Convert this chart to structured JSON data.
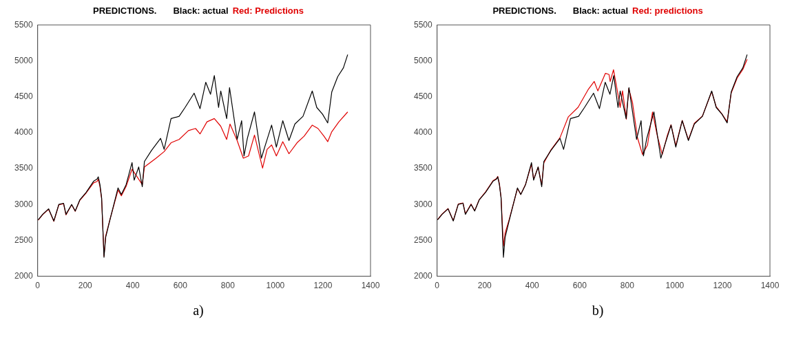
{
  "chart_data": [
    {
      "type": "line",
      "title": "PREDICTIONS.",
      "legend": "top",
      "xlim": [
        0,
        1400
      ],
      "xticks": [
        0,
        200,
        400,
        600,
        800,
        1000,
        1200,
        1400
      ],
      "ylim": [
        2000,
        5500
      ],
      "yticks": [
        2000,
        2500,
        3000,
        3500,
        4000,
        4500,
        5000,
        5500
      ],
      "annotations": [
        "a)"
      ],
      "series": [
        {
          "name": "Black: actual",
          "color": "#000000",
          "x": [
            2,
            21,
            46,
            68,
            89,
            109,
            119,
            143,
            158,
            177,
            204,
            235,
            250,
            255,
            262,
            269,
            279,
            286,
            304,
            338,
            352,
            372,
            397,
            406,
            425,
            440,
            449,
            479,
            517,
            532,
            561,
            595,
            620,
            658,
            683,
            707,
            727,
            743,
            761,
            770,
            795,
            807,
            839,
            858,
            868,
            882,
            912,
            941,
            955,
            984,
            1004,
            1031,
            1057,
            1082,
            1116,
            1155,
            1174,
            1198,
            1220,
            1237,
            1262,
            1286,
            1304
          ],
          "values": [
            2786,
            2862,
            2939,
            2770,
            3000,
            3016,
            2862,
            3000,
            2908,
            3062,
            3169,
            3322,
            3353,
            3384,
            3276,
            3092,
            2264,
            2540,
            2786,
            3230,
            3138,
            3276,
            3583,
            3338,
            3522,
            3246,
            3598,
            3752,
            3920,
            3767,
            4196,
            4227,
            4350,
            4549,
            4334,
            4702,
            4534,
            4794,
            4350,
            4580,
            4196,
            4626,
            3905,
            4166,
            3675,
            3920,
            4288,
            3644,
            3798,
            4104,
            3798,
            4166,
            3890,
            4120,
            4227,
            4580,
            4350,
            4258,
            4135,
            4565,
            4779,
            4902,
            5086
          ]
        },
        {
          "name": "Red: Predictions",
          "color": "#e00000",
          "x": [
            2,
            21,
            46,
            68,
            89,
            109,
            119,
            143,
            158,
            177,
            204,
            235,
            250,
            255,
            262,
            269,
            279,
            286,
            304,
            338,
            352,
            372,
            397,
            440,
            449,
            498,
            532,
            561,
            595,
            634,
            664,
            683,
            712,
            743,
            770,
            795,
            809,
            839,
            865,
            887,
            912,
            946,
            965,
            984,
            1004,
            1031,
            1057,
            1091,
            1121,
            1155,
            1179,
            1204,
            1220,
            1237,
            1267,
            1304
          ],
          "values": [
            2780,
            2858,
            2935,
            2765,
            2995,
            3010,
            2855,
            2995,
            2905,
            3055,
            3160,
            3300,
            3320,
            3350,
            3250,
            3080,
            2280,
            2560,
            2790,
            3200,
            3120,
            3250,
            3491,
            3276,
            3522,
            3644,
            3736,
            3859,
            3905,
            4028,
            4058,
            3982,
            4150,
            4196,
            4089,
            3905,
            4120,
            3890,
            3644,
            3675,
            3966,
            3506,
            3767,
            3828,
            3675,
            3874,
            3706,
            3859,
            3951,
            4104,
            4058,
            3951,
            3874,
            4012,
            4150,
            4288
          ]
        }
      ]
    },
    {
      "type": "line",
      "title": "PREDICTIONS.",
      "legend": "top",
      "xlim": [
        0,
        1400
      ],
      "xticks": [
        0,
        200,
        400,
        600,
        800,
        1000,
        1200,
        1400
      ],
      "ylim": [
        2000,
        5500
      ],
      "yticks": [
        2000,
        2500,
        3000,
        3500,
        4000,
        4500,
        5000,
        5500
      ],
      "annotations": [
        "b)"
      ],
      "series": [
        {
          "name": "Black: actual",
          "color": "#000000",
          "x": [
            2,
            21,
            46,
            68,
            89,
            109,
            119,
            143,
            158,
            177,
            204,
            235,
            250,
            255,
            262,
            269,
            279,
            286,
            304,
            338,
            352,
            372,
            397,
            406,
            425,
            440,
            449,
            479,
            517,
            532,
            561,
            595,
            620,
            658,
            683,
            707,
            727,
            743,
            761,
            770,
            795,
            807,
            839,
            858,
            868,
            882,
            912,
            941,
            955,
            984,
            1004,
            1031,
            1057,
            1082,
            1116,
            1155,
            1174,
            1198,
            1220,
            1237,
            1262,
            1286,
            1304
          ],
          "values": [
            2786,
            2862,
            2939,
            2770,
            3000,
            3016,
            2862,
            3000,
            2908,
            3062,
            3169,
            3322,
            3353,
            3384,
            3276,
            3092,
            2264,
            2540,
            2786,
            3230,
            3138,
            3276,
            3583,
            3338,
            3522,
            3246,
            3598,
            3752,
            3920,
            3767,
            4196,
            4227,
            4350,
            4549,
            4334,
            4702,
            4534,
            4794,
            4350,
            4580,
            4196,
            4626,
            3905,
            4166,
            3675,
            3920,
            4288,
            3644,
            3798,
            4104,
            3798,
            4166,
            3890,
            4120,
            4227,
            4580,
            4350,
            4258,
            4135,
            4565,
            4779,
            4902,
            5086
          ]
        },
        {
          "name": "Red: predictions",
          "color": "#e00000",
          "x": [
            2,
            21,
            46,
            68,
            89,
            109,
            119,
            143,
            158,
            177,
            204,
            235,
            250,
            255,
            262,
            269,
            279,
            286,
            304,
            338,
            352,
            372,
            397,
            406,
            425,
            440,
            449,
            479,
            517,
            552,
            593,
            635,
            661,
            676,
            708,
            723,
            728,
            742,
            760,
            770,
            780,
            796,
            806,
            822,
            843,
            864,
            885,
            906,
            926,
            947,
            968,
            984,
            1004,
            1031,
            1057,
            1082,
            1116,
            1155,
            1174,
            1198,
            1220,
            1237,
            1262,
            1286,
            1304
          ],
          "values": [
            2790,
            2866,
            2942,
            2775,
            3005,
            3020,
            2870,
            3005,
            2912,
            3066,
            3175,
            3330,
            3360,
            3390,
            3290,
            3100,
            2420,
            2600,
            2800,
            3220,
            3140,
            3280,
            3560,
            3350,
            3520,
            3270,
            3580,
            3760,
            3930,
            4220,
            4352,
            4597,
            4712,
            4581,
            4826,
            4810,
            4712,
            4876,
            4548,
            4352,
            4581,
            4188,
            4614,
            4417,
            3926,
            3696,
            3828,
            4286,
            3959,
            3696,
            3959,
            4110,
            3820,
            4170,
            3900,
            4130,
            4230,
            4570,
            4360,
            4260,
            4150,
            4550,
            4760,
            4880,
            5020
          ]
        }
      ]
    }
  ]
}
